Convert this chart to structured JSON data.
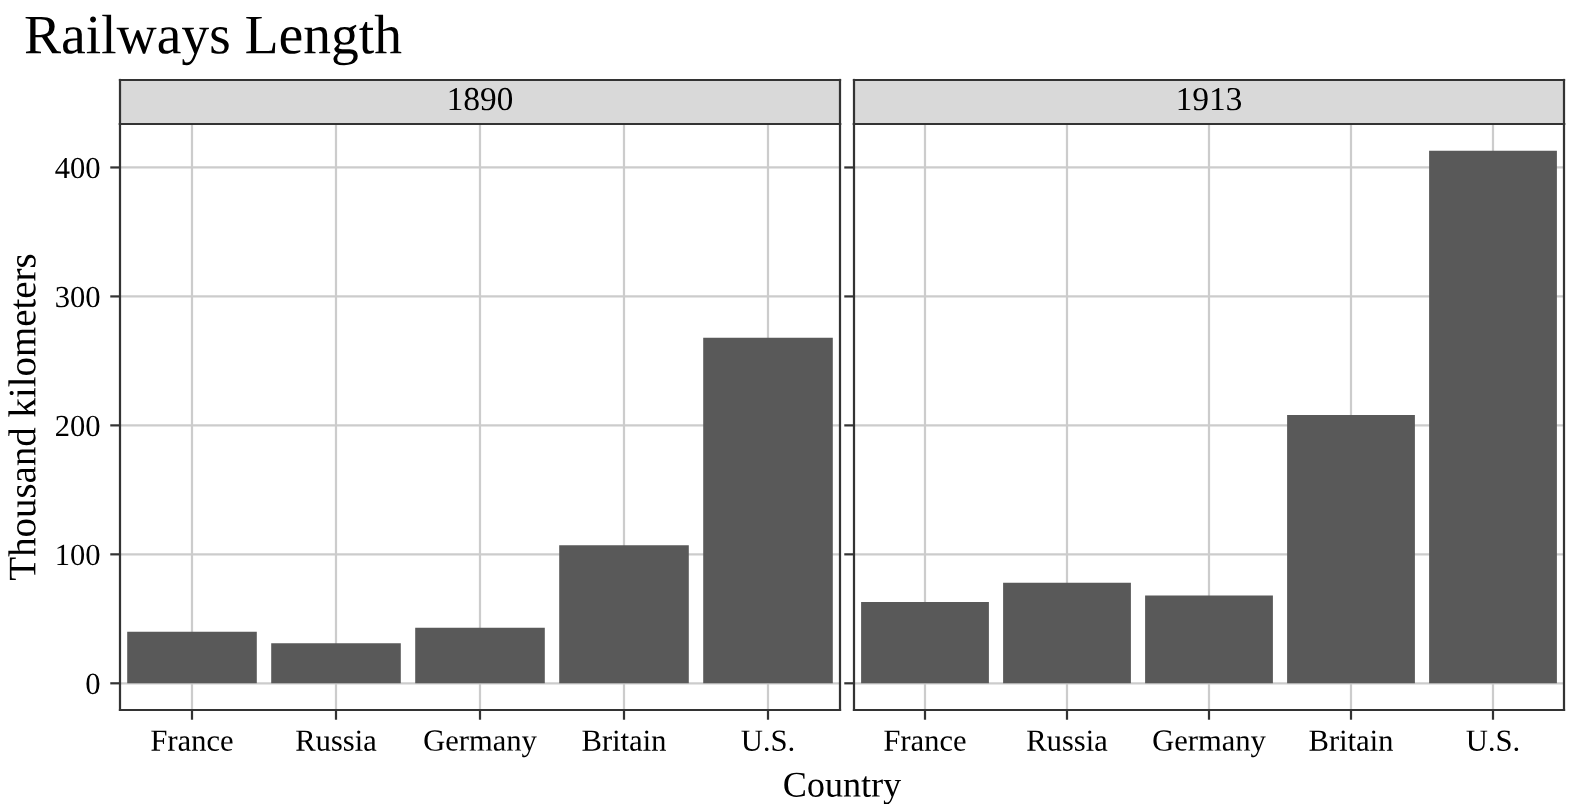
{
  "chart_data": [
    {
      "type": "bar",
      "title": "Railways Length",
      "subtitle": "1890",
      "ylabel": "Thousand kilometers",
      "xlabel": "Country",
      "categories": [
        "France",
        "Russia",
        "Germany",
        "Britain",
        "U.S."
      ],
      "series": [
        {
          "color": "#595959",
          "values": [
            40,
            31,
            43,
            107,
            268
          ]
        }
      ],
      "ylim": [
        -20.7,
        433.7
      ],
      "yticks": [
        0,
        100,
        200,
        300,
        400
      ],
      "grid": true,
      "legend": false
    },
    {
      "type": "bar",
      "subtitle": "1913",
      "categories": [
        "France",
        "Russia",
        "Germany",
        "Britain",
        "U.S."
      ],
      "series": [
        {
          "color": "#595959",
          "values": [
            63,
            78,
            68,
            208,
            413
          ]
        }
      ],
      "ylim": [
        -20.7,
        433.7
      ],
      "yticks": [
        0,
        100,
        200,
        300,
        400
      ],
      "grid": true,
      "legend": false,
      "tick_labels": "x"
    }
  ]
}
